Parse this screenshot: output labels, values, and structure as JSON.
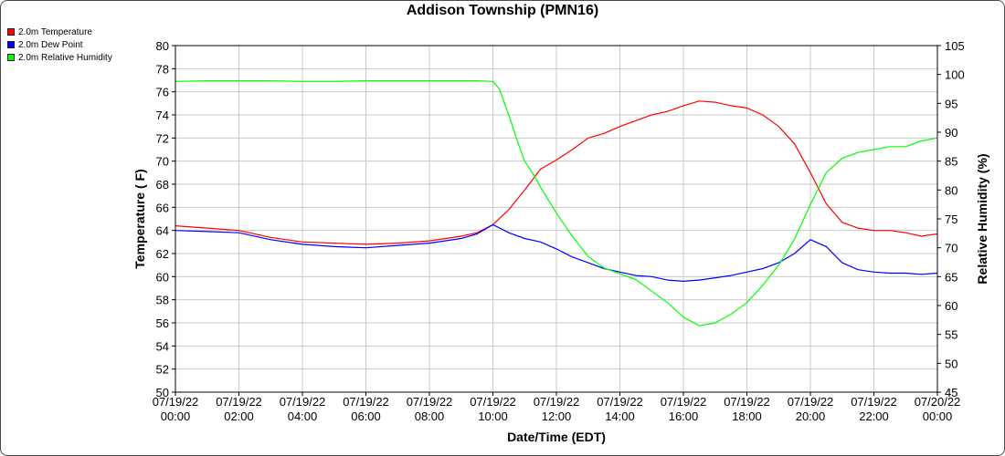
{
  "chart_data": {
    "type": "line",
    "title": "Addison Township (PMN16)",
    "xlabel": "Date/Time (EDT)",
    "ylabel": "Temperature ( F)",
    "y2label": "Relative Humidity (%)",
    "xlim": [
      "07/19/22 00:00",
      "07/20/22 00:00"
    ],
    "ylim": [
      50,
      80
    ],
    "y2lim": [
      45,
      105
    ],
    "yticks": [
      50,
      52,
      54,
      56,
      58,
      60,
      62,
      64,
      66,
      68,
      70,
      72,
      74,
      76,
      78,
      80
    ],
    "y2ticks": [
      45,
      50,
      55,
      60,
      65,
      70,
      75,
      80,
      85,
      90,
      95,
      100,
      105
    ],
    "xticks": [
      {
        "hour": 0,
        "date": "07/19/22",
        "time": "00:00"
      },
      {
        "hour": 2,
        "date": "07/19/22",
        "time": "02:00"
      },
      {
        "hour": 4,
        "date": "07/19/22",
        "time": "04:00"
      },
      {
        "hour": 6,
        "date": "07/19/22",
        "time": "06:00"
      },
      {
        "hour": 8,
        "date": "07/19/22",
        "time": "08:00"
      },
      {
        "hour": 10,
        "date": "07/19/22",
        "time": "10:00"
      },
      {
        "hour": 12,
        "date": "07/19/22",
        "time": "12:00"
      },
      {
        "hour": 14,
        "date": "07/19/22",
        "time": "14:00"
      },
      {
        "hour": 16,
        "date": "07/19/22",
        "time": "16:00"
      },
      {
        "hour": 18,
        "date": "07/19/22",
        "time": "18:00"
      },
      {
        "hour": 20,
        "date": "07/19/22",
        "time": "20:00"
      },
      {
        "hour": 22,
        "date": "07/19/22",
        "time": "22:00"
      },
      {
        "hour": 24,
        "date": "07/20/22",
        "time": "00:00"
      }
    ],
    "grid": true,
    "legend_position": "top-left",
    "series": [
      {
        "name": "2.0m Temperature",
        "axis": "left",
        "color": "#ff0000",
        "x": [
          0,
          1,
          2,
          3,
          4,
          5,
          6,
          7,
          8,
          9,
          9.5,
          10,
          10.5,
          11,
          11.5,
          12,
          12.5,
          13,
          13.5,
          14,
          14.5,
          15,
          15.5,
          16,
          16.5,
          17,
          17.5,
          18,
          18.5,
          19,
          19.5,
          20,
          20.5,
          21,
          21.5,
          22,
          22.5,
          23,
          23.5,
          24
        ],
        "values": [
          64.4,
          64.2,
          64.0,
          63.4,
          63.0,
          62.9,
          62.8,
          62.9,
          63.1,
          63.5,
          63.8,
          64.5,
          65.8,
          67.5,
          69.3,
          70.1,
          71.0,
          72.0,
          72.4,
          73.0,
          73.5,
          74.0,
          74.3,
          74.8,
          75.2,
          75.1,
          74.8,
          74.6,
          74.0,
          73.0,
          71.5,
          69.0,
          66.3,
          64.7,
          64.2,
          64.0,
          64.0,
          63.8,
          63.5,
          63.7
        ]
      },
      {
        "name": "2.0m Dew Point",
        "axis": "left",
        "color": "#0000ff",
        "x": [
          0,
          1,
          2,
          3,
          4,
          5,
          6,
          7,
          8,
          9,
          9.5,
          10,
          10.5,
          11,
          11.5,
          12,
          12.5,
          13,
          13.5,
          14,
          14.5,
          15,
          15.5,
          16,
          16.5,
          17,
          17.5,
          18,
          18.5,
          19,
          19.5,
          20,
          20.5,
          21,
          21.5,
          22,
          22.5,
          23,
          23.5,
          24
        ],
        "values": [
          64.0,
          63.9,
          63.8,
          63.2,
          62.8,
          62.6,
          62.5,
          62.7,
          62.9,
          63.3,
          63.7,
          64.5,
          63.8,
          63.3,
          63.0,
          62.4,
          61.7,
          61.2,
          60.7,
          60.4,
          60.1,
          60.0,
          59.7,
          59.6,
          59.7,
          59.9,
          60.1,
          60.4,
          60.7,
          61.2,
          62.0,
          63.2,
          62.6,
          61.2,
          60.6,
          60.4,
          60.3,
          60.3,
          60.2,
          60.3
        ]
      },
      {
        "name": "2.0m Relative Humidity",
        "axis": "right",
        "color": "#00ff00",
        "x": [
          0,
          1,
          2,
          3,
          4,
          5,
          6,
          7,
          8,
          9,
          9.5,
          10,
          10.2,
          10.5,
          10.8,
          11,
          11.3,
          11.5,
          12,
          12.5,
          13,
          13.5,
          14,
          14.5,
          15,
          15.5,
          16,
          16.5,
          17,
          17.5,
          18,
          18.5,
          19,
          19.5,
          20,
          20.5,
          21,
          21.5,
          22,
          22.5,
          23,
          23.5,
          24
        ],
        "values": [
          98.8,
          98.9,
          98.9,
          98.9,
          98.8,
          98.8,
          98.9,
          98.9,
          98.9,
          98.9,
          98.9,
          98.8,
          97.5,
          93.0,
          88.0,
          85.0,
          82.5,
          80.5,
          76.0,
          72.0,
          68.5,
          66.5,
          65.5,
          64.5,
          62.5,
          60.5,
          58.0,
          56.5,
          57.0,
          58.5,
          60.5,
          63.5,
          67.0,
          71.5,
          77.5,
          83.0,
          85.5,
          86.5,
          87.0,
          87.5,
          87.5,
          88.5,
          89.0
        ]
      }
    ]
  }
}
